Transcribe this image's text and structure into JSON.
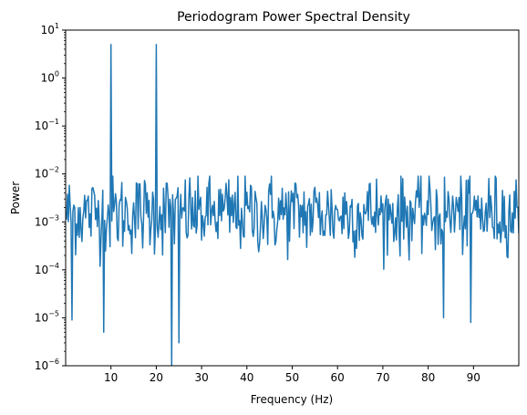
{
  "chart_data": {
    "type": "line",
    "title": "Periodogram Power Spectral Density",
    "xlabel": "Frequency (Hz)",
    "ylabel": "Power",
    "xlim": [
      0,
      100
    ],
    "yscale": "log",
    "ylim": [
      1e-06,
      10
    ],
    "x_ticks": [
      10,
      20,
      30,
      40,
      50,
      60,
      70,
      80,
      90
    ],
    "y_ticks": [
      {
        "value": 1e-06,
        "base": "10",
        "exp": "−6"
      },
      {
        "value": 1e-05,
        "base": "10",
        "exp": "−5"
      },
      {
        "value": 0.0001,
        "base": "10",
        "exp": "−4"
      },
      {
        "value": 0.001,
        "base": "10",
        "exp": "−3"
      },
      {
        "value": 0.01,
        "base": "10",
        "exp": "−2"
      },
      {
        "value": 0.1,
        "base": "10",
        "exp": "−1"
      },
      {
        "value": 1,
        "base": "10",
        "exp": "0"
      },
      {
        "value": 10,
        "base": "10",
        "exp": "1"
      }
    ],
    "grid": false,
    "line_color": "#1f77b4",
    "peaks": [
      {
        "x": 10,
        "y": 5
      },
      {
        "x": 20,
        "y": 5
      }
    ],
    "notable_dips": [
      {
        "x": 1.5,
        "y": 9e-06
      },
      {
        "x": 8.5,
        "y": 5e-06
      },
      {
        "x": 23.5,
        "y": 1e-06
      },
      {
        "x": 25,
        "y": 3e-06
      },
      {
        "x": 83.5,
        "y": 1e-05
      },
      {
        "x": 89.5,
        "y": 8e-06
      }
    ],
    "noise_floor": {
      "median": 0.0015,
      "upper": 0.009,
      "lower": 0.0001
    },
    "sample_step_hz": 0.2
  }
}
